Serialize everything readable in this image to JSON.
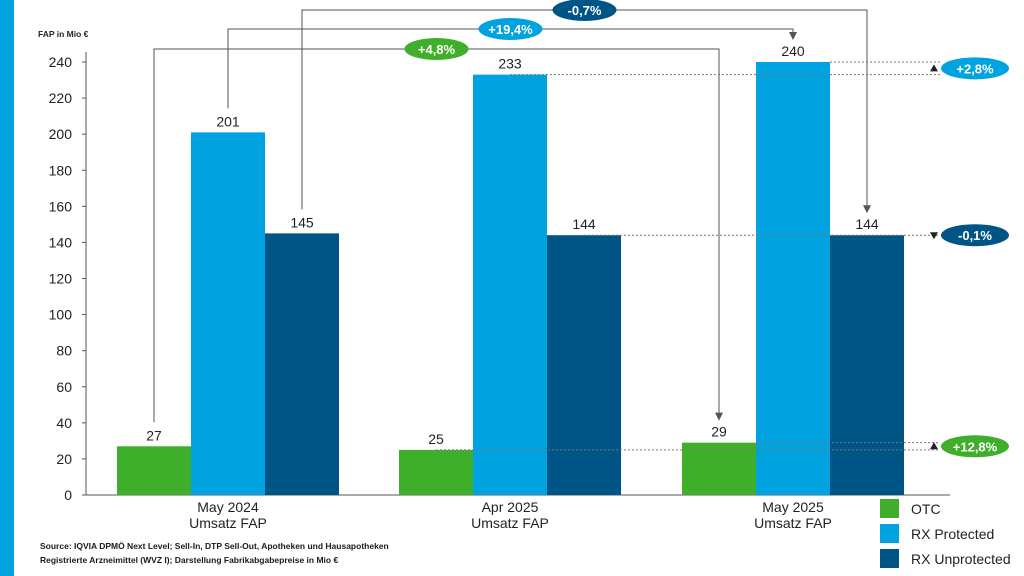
{
  "chart_data": {
    "type": "bar",
    "ylabel": "FAP in Mio €",
    "ylim": [
      0,
      240
    ],
    "yticks": [
      0,
      20,
      40,
      60,
      80,
      100,
      120,
      140,
      160,
      180,
      200,
      220,
      240
    ],
    "categories": [
      {
        "line1": "May 2024",
        "line2": "Umsatz FAP"
      },
      {
        "line1": "Apr 2025",
        "line2": "Umsatz FAP"
      },
      {
        "line1": "May 2025",
        "line2": "Umsatz FAP"
      }
    ],
    "series": [
      {
        "name": "OTC",
        "color": "#3fae2a",
        "values": [
          27,
          25,
          29
        ]
      },
      {
        "name": "RX Protected",
        "color": "#00a3e0",
        "values": [
          201,
          233,
          240
        ]
      },
      {
        "name": "RX Unprotected",
        "color": "#005587",
        "values": [
          145,
          144,
          144
        ]
      }
    ],
    "yoy_changes": [
      {
        "label": "+4,8%",
        "series": 0,
        "color": "#3fae2a"
      },
      {
        "label": "+19,4%",
        "series": 1,
        "color": "#00a3e0"
      },
      {
        "label": "-0,7%",
        "series": 2,
        "color": "#005587"
      }
    ],
    "mom_changes": [
      {
        "label": "+2,8%",
        "series": 1,
        "color": "#00a3e0"
      },
      {
        "label": "-0,1%",
        "series": 2,
        "color": "#005587"
      },
      {
        "label": "+12,8%",
        "series": 0,
        "color": "#3fae2a"
      }
    ]
  },
  "source": {
    "line1": "Source: IQVIA DPMÖ Next Level; Sell-In, DTP Sell-Out, Apotheken und Hausapotheken",
    "line2": "Registrierte Arzneimittel (WVZ I); Darstellung Fabrikabgabepreise in Mio €"
  },
  "colors": {
    "accent": "#00a3e0",
    "axis": "#555555",
    "connector": "#555555",
    "dotted": "#777777"
  }
}
